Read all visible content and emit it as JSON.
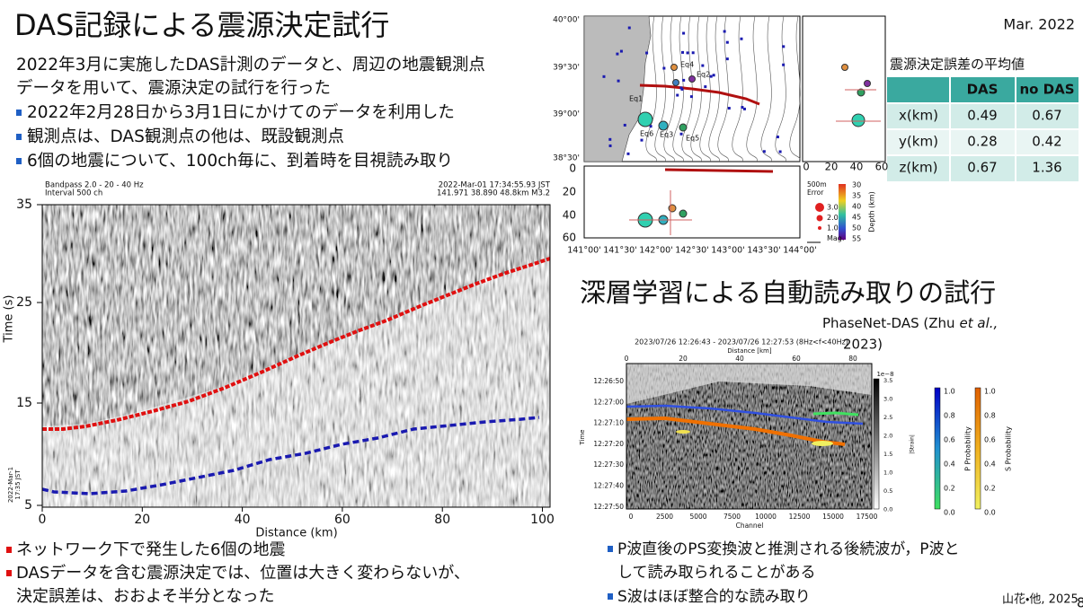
{
  "header": {
    "title": "DAS記録による震源決定試行",
    "date": "Mar. 2022"
  },
  "intro": [
    "2022年3月に実施したDAS計測のデータと、周辺の地震観測点",
    "データを用いて、震源決定の試行を行った"
  ],
  "bullets": [
    "2022年2月28日から3月1日にかけてのデータを利用した",
    "観測点は、DAS観測点の他は、既設観測点",
    "6個の地震について、100ch毎に、到着時を目視読み取り"
  ],
  "das_figure": {
    "info_left": [
      "Bandpass 2.0 - 20 - 40 Hz",
      "Interval 500 ch"
    ],
    "info_right": [
      "2022-Mar-01 17:34:55.93 JST",
      "141.971 38.890 48.8km M3.2"
    ],
    "yticks": [
      "35",
      "25",
      "15",
      "5"
    ],
    "y_label": "Time (s)",
    "xticks": [
      "0",
      "20",
      "40",
      "60",
      "80",
      "100"
    ],
    "x_label": "Distance (km)",
    "origin_label": [
      "2022-Mar-1",
      "17:35 JST"
    ]
  },
  "findings": [
    "ネットワーク下で発生した6個の地震",
    "DASデータを含む震源決定では、位置は大きく変わらないが、",
    "決定誤差は、おおよそ半分となった"
  ],
  "map_figure": {
    "lat_ticks": [
      "40°00'",
      "39°30'",
      "39°00'",
      "38°30'"
    ],
    "depth_ticks": [
      "0",
      "20",
      "40",
      "60"
    ],
    "lon_ticks": [
      "141°00'",
      "141°30'",
      "142°00'",
      "142°30'",
      "143°00'",
      "143°30'",
      "144°00'"
    ],
    "side_ticks": [
      "0",
      "20",
      "40",
      "60"
    ],
    "events": [
      "Eq1",
      "Eq2",
      "Eq3",
      "Eq4",
      "Eq5",
      "Eq6"
    ],
    "error_legend": [
      "500m",
      "Error"
    ],
    "mag_legend": [
      "3.0",
      "2.0",
      "1.0",
      "Mag."
    ],
    "color_ticks": [
      "30",
      "35",
      "40",
      "45",
      "50",
      "55"
    ],
    "color_label": "Depth (km)"
  },
  "table": {
    "caption": "震源決定誤差の平均値",
    "header": [
      "DAS",
      "no DAS"
    ],
    "rows": [
      [
        "x(km)",
        "0.49",
        "0.67"
      ],
      [
        "y(km)",
        "0.28",
        "0.42"
      ],
      [
        "z(km)",
        "0.67",
        "1.36"
      ]
    ]
  },
  "phasenet": {
    "title": "深層学習による自動読み取りの試行",
    "credit": [
      "PhaseNet-DAS (Zhu",
      "et al.,",
      "2023)"
    ],
    "plot_title": "2023/07/26 12:26:43 - 2023/07/26 12:27:53 (8Hz<f<40Hz)",
    "top_label": "Distance [km]",
    "top_ticks": [
      "0",
      "20",
      "40",
      "60",
      "80"
    ],
    "time_ticks": [
      "12:26:50",
      "12:27:00",
      "12:27:10",
      "12:27:20",
      "12:27:30",
      "12:27:40",
      "12:27:50"
    ],
    "y_label": "Time",
    "bottom_ticks": [
      "0",
      "2500",
      "5000",
      "7500",
      "10000",
      "12500",
      "15000",
      "17500"
    ],
    "x_label": "Channel",
    "strain_exp": "1e−8",
    "strain_ticks": [
      "3.5",
      "3.0",
      "2.5",
      "2.0",
      "1.5",
      "1.0",
      "0.5",
      "0.0"
    ],
    "strain_label": "|Strain|",
    "prob_ticks": [
      "1.0",
      "0.8",
      "0.6",
      "0.4",
      "0.2",
      "0.0"
    ],
    "p_label": "P Probability",
    "s_label": "S Probability"
  },
  "notes": [
    "P波直後のPS変換波と推測される後続波が，P波と",
    "して読み取られることがある",
    "S波はほぼ整合的な読み取り"
  ],
  "citation": "山花・他, 2025",
  "page": "8"
}
